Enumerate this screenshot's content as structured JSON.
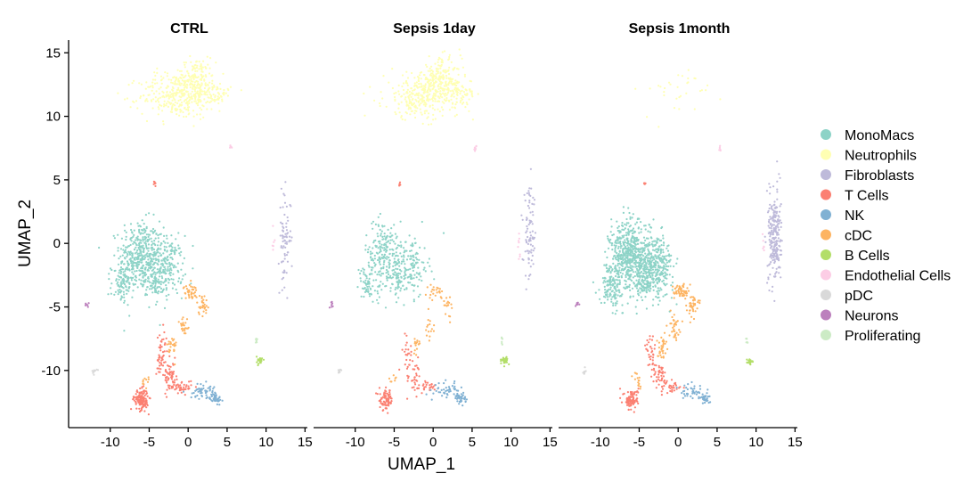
{
  "chart_data": {
    "type": "scatter",
    "xlabel": "UMAP_1",
    "ylabel": "UMAP_2",
    "xlim": [
      -15,
      15.3
    ],
    "ylim": [
      -14.5,
      16
    ],
    "x_ticks": [
      -10,
      -5,
      0,
      5,
      10,
      15
    ],
    "y_ticks": [
      15,
      10,
      5,
      0,
      -5,
      -10
    ],
    "grid": false,
    "legend_position": "right",
    "panels": [
      {
        "title": "CTRL",
        "density": {
          "MonoMacs": 1.0,
          "Neutrophils": 1.0,
          "Fibroblasts": 0.55,
          "T Cells": 1.0,
          "NK": 1.0,
          "cDC": 1.0,
          "B Cells": 1.0,
          "Endothelial Cells": 1.0,
          "pDC": 1.0,
          "Neurons": 1.0,
          "Proliferating": 1.0
        }
      },
      {
        "title": "Sepsis 1day",
        "density": {
          "MonoMacs": 0.6,
          "Neutrophils": 1.0,
          "Fibroblasts": 0.6,
          "T Cells": 0.55,
          "NK": 0.9,
          "cDC": 0.6,
          "B Cells": 1.3,
          "Endothelial Cells": 1.5,
          "pDC": 1.0,
          "Neurons": 1.0,
          "Proliferating": 1.0
        }
      },
      {
        "title": "Sepsis 1month",
        "density": {
          "MonoMacs": 1.5,
          "Neutrophils": 0.06,
          "Fibroblasts": 1.8,
          "T Cells": 0.7,
          "NK": 0.8,
          "cDC": 1.4,
          "B Cells": 0.8,
          "Endothelial Cells": 1.0,
          "pDC": 1.0,
          "Neurons": 1.0,
          "Proliferating": 1.0
        }
      }
    ],
    "series": [
      {
        "name": "MonoMacs",
        "color": "#8DD3C7",
        "clusters": [
          {
            "cx": -6.2,
            "cy": -1.0,
            "sx": 1.3,
            "sy": 1.4,
            "n": 700
          },
          {
            "cx": -3.0,
            "cy": -1.8,
            "sx": 1.2,
            "sy": 1.2,
            "n": 450
          },
          {
            "cx": -8.5,
            "cy": -3.3,
            "sx": 0.7,
            "sy": 0.8,
            "n": 160
          },
          {
            "cx": -4.4,
            "cy": -3.2,
            "sx": 0.5,
            "sy": 0.4,
            "n": 60
          }
        ]
      },
      {
        "name": "Neutrophils",
        "color": "#FFFFB3",
        "clusters": [
          {
            "cx": -1.5,
            "cy": 11.6,
            "sx": 2.4,
            "sy": 0.9,
            "n": 550
          },
          {
            "cx": 1.0,
            "cy": 13.0,
            "sx": 1.3,
            "sy": 0.8,
            "n": 300
          },
          {
            "cx": 3.3,
            "cy": 11.8,
            "sx": 1.1,
            "sy": 0.6,
            "n": 130
          }
        ]
      },
      {
        "name": "Fibroblasts",
        "color": "#BEBADA",
        "clusters": [
          {
            "cx": 12.4,
            "cy": 0.5,
            "sx": 0.4,
            "sy": 1.8,
            "n": 250
          }
        ]
      },
      {
        "name": "T Cells",
        "color": "#FB8072",
        "clusters": [
          {
            "cx": -6.0,
            "cy": -12.3,
            "sx": 0.45,
            "sy": 0.4,
            "n": 260
          },
          {
            "cx": -3.4,
            "cy": -8.8,
            "sx": 0.35,
            "sy": 1.0,
            "n": 90
          },
          {
            "cx": -2.3,
            "cy": -10.5,
            "sx": 0.4,
            "sy": 0.6,
            "n": 100
          },
          {
            "cx": -0.8,
            "cy": -11.3,
            "sx": 0.7,
            "sy": 0.25,
            "n": 80
          },
          {
            "cx": -4.3,
            "cy": 4.7,
            "sx": 0.08,
            "sy": 0.1,
            "n": 12
          }
        ]
      },
      {
        "name": "NK",
        "color": "#80B1D3",
        "clusters": [
          {
            "cx": 1.8,
            "cy": -11.6,
            "sx": 0.8,
            "sy": 0.3,
            "n": 90
          },
          {
            "cx": 3.5,
            "cy": -12.2,
            "sx": 0.35,
            "sy": 0.2,
            "n": 80
          }
        ]
      },
      {
        "name": "cDC",
        "color": "#FDB462",
        "clusters": [
          {
            "cx": 0.3,
            "cy": -3.8,
            "sx": 0.45,
            "sy": 0.3,
            "n": 70
          },
          {
            "cx": 1.8,
            "cy": -4.8,
            "sx": 0.35,
            "sy": 0.4,
            "n": 50
          },
          {
            "cx": -0.5,
            "cy": -6.5,
            "sx": 0.35,
            "sy": 0.5,
            "n": 45
          },
          {
            "cx": -2.1,
            "cy": -8.2,
            "sx": 0.3,
            "sy": 0.5,
            "n": 45
          },
          {
            "cx": -5.3,
            "cy": -10.8,
            "sx": 0.3,
            "sy": 0.3,
            "n": 20
          }
        ]
      },
      {
        "name": "B Cells",
        "color": "#B3DE69",
        "clusters": [
          {
            "cx": 9.2,
            "cy": -9.2,
            "sx": 0.2,
            "sy": 0.15,
            "n": 45
          }
        ]
      },
      {
        "name": "Endothelial Cells",
        "color": "#FCCDE5",
        "clusters": [
          {
            "cx": 5.4,
            "cy": 7.5,
            "sx": 0.08,
            "sy": 0.12,
            "n": 10
          },
          {
            "cx": 11.0,
            "cy": 0.0,
            "sx": 0.1,
            "sy": 0.5,
            "n": 10
          }
        ]
      },
      {
        "name": "pDC",
        "color": "#D9D9D9",
        "clusters": [
          {
            "cx": -12.0,
            "cy": -10.1,
            "sx": 0.15,
            "sy": 0.12,
            "n": 14
          }
        ]
      },
      {
        "name": "Neurons",
        "color": "#BC80BD",
        "clusters": [
          {
            "cx": -13.0,
            "cy": -4.8,
            "sx": 0.12,
            "sy": 0.1,
            "n": 12
          }
        ]
      },
      {
        "name": "Proliferating",
        "color": "#CCEBC5",
        "clusters": [
          {
            "cx": 8.8,
            "cy": -7.6,
            "sx": 0.08,
            "sy": 0.2,
            "n": 10
          }
        ]
      }
    ]
  }
}
